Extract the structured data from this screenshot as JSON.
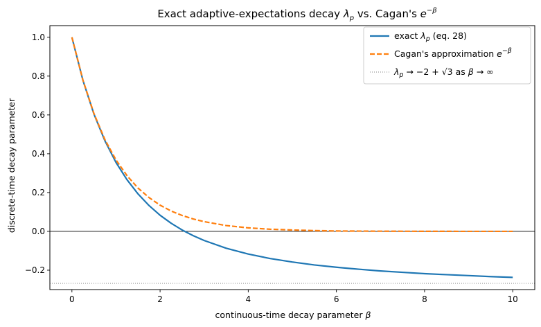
{
  "chart_data": {
    "type": "line",
    "title": "Exact adaptive-expectations decay λ_p vs. Cagan's e^{−β}",
    "xlabel": "continuous-time decay parameter β",
    "ylabel": "discrete-time decay parameter",
    "xlim": [
      -0.5,
      10.5
    ],
    "ylim": [
      -0.3,
      1.06
    ],
    "xticks": [
      0,
      2,
      4,
      6,
      8,
      10
    ],
    "yticks": [
      -0.2,
      0.0,
      0.2,
      0.4,
      0.6,
      0.8,
      1.0
    ],
    "xtick_labels": [
      "0",
      "2",
      "4",
      "6",
      "8",
      "10"
    ],
    "ytick_labels": [
      "−0.2",
      "0.0",
      "0.2",
      "0.4",
      "0.6",
      "0.8",
      "1.0"
    ],
    "grid": false,
    "legend_position": "top-right",
    "reference_lines": [
      {
        "orientation": "horizontal",
        "y": 0.0,
        "style": "solid",
        "color": "#000000"
      }
    ],
    "series": [
      {
        "name": "exact λ_p (eq. 28)",
        "color": "#1f77b4",
        "style": "solid",
        "x": [
          0,
          0.25,
          0.5,
          0.75,
          1.0,
          1.25,
          1.5,
          1.75,
          2.0,
          2.25,
          2.5,
          2.75,
          3.0,
          3.5,
          4.0,
          4.5,
          5.0,
          5.5,
          6.0,
          6.5,
          7.0,
          7.5,
          8.0,
          8.5,
          9.0,
          9.5,
          10.0
        ],
        "y": [
          1.0,
          0.778,
          0.604,
          0.466,
          0.355,
          0.266,
          0.193,
          0.133,
          0.083,
          0.042,
          0.007,
          -0.022,
          -0.047,
          -0.087,
          -0.117,
          -0.14,
          -0.158,
          -0.173,
          -0.185,
          -0.195,
          -0.204,
          -0.211,
          -0.218,
          -0.223,
          -0.228,
          -0.233,
          -0.237
        ]
      },
      {
        "name": "Cagan's approximation e^{−β}",
        "color": "#ff7f0e",
        "style": "dashed",
        "x": [
          0,
          0.25,
          0.5,
          0.75,
          1.0,
          1.25,
          1.5,
          1.75,
          2.0,
          2.25,
          2.5,
          2.75,
          3.0,
          3.5,
          4.0,
          4.5,
          5.0,
          5.5,
          6.0,
          6.5,
          7.0,
          7.5,
          8.0,
          8.5,
          9.0,
          9.5,
          10.0
        ],
        "y": [
          1.0,
          0.779,
          0.607,
          0.472,
          0.368,
          0.287,
          0.223,
          0.174,
          0.135,
          0.105,
          0.082,
          0.064,
          0.05,
          0.03,
          0.018,
          0.011,
          0.007,
          0.004,
          0.002,
          0.0015,
          0.0009,
          0.0006,
          0.0003,
          0.0002,
          0.0001,
          0.0001,
          0.0
        ]
      },
      {
        "name": "λ_p → −2 + √3 as β → ∞",
        "color": "#808080",
        "style": "dotted",
        "y_constant": -0.268
      }
    ]
  }
}
